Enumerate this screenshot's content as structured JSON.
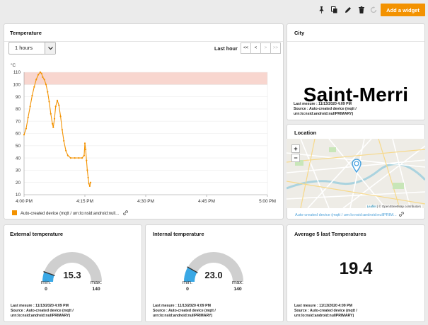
{
  "toolbar": {
    "icons": [
      "pin-icon",
      "copy-icon",
      "pencil-icon",
      "trash-icon",
      "refresh-icon"
    ],
    "add_widget_label": "Add a widget"
  },
  "colors": {
    "accent": "#f39200",
    "gauge_fill": "#3aa8e5",
    "gauge_track": "#cfcfcf",
    "threshold_band": "#f8d6cf"
  },
  "temperature_widget": {
    "title": "Temperature",
    "range_select": "1 hours",
    "range_label": "Last hour",
    "pager": [
      "<<",
      "<",
      ">",
      ">>"
    ],
    "legend": "Auto-created device (mqtt / urn:lo:nsid:android:null..."
  },
  "chart_data": {
    "type": "line",
    "title": "",
    "xlabel": "",
    "ylabel": "°C",
    "x_ticks": [
      "4:00 PM",
      "4:15 PM",
      "4:30 PM",
      "4:45 PM",
      "5:00 PM"
    ],
    "y_ticks": [
      "10",
      "20",
      "30",
      "40",
      "50",
      "60",
      "70",
      "80",
      "90",
      "100",
      "110"
    ],
    "ylim": [
      10,
      110
    ],
    "xlim_minutes": [
      0,
      60
    ],
    "threshold_band": [
      100,
      110
    ],
    "series": [
      {
        "name": "Auto-created device (mqtt / urn:lo:nsid:android:null...",
        "color": "#f39200",
        "points": [
          [
            0.0,
            59
          ],
          [
            0.5,
            64
          ],
          [
            1.0,
            73
          ],
          [
            1.5,
            82
          ],
          [
            2.0,
            91
          ],
          [
            2.5,
            98
          ],
          [
            3.0,
            104
          ],
          [
            3.5,
            108
          ],
          [
            4.0,
            110
          ],
          [
            4.3,
            109
          ],
          [
            4.6,
            106
          ],
          [
            5.0,
            104
          ],
          [
            5.4,
            100
          ],
          [
            5.8,
            94
          ],
          [
            6.2,
            86
          ],
          [
            6.6,
            76
          ],
          [
            7.0,
            68
          ],
          [
            7.2,
            65
          ],
          [
            7.5,
            72
          ],
          [
            7.8,
            82
          ],
          [
            8.2,
            87
          ],
          [
            8.6,
            83
          ],
          [
            9.0,
            74
          ],
          [
            9.4,
            63
          ],
          [
            9.8,
            54
          ],
          [
            10.3,
            46
          ],
          [
            10.8,
            42
          ],
          [
            11.5,
            40
          ],
          [
            12.5,
            40
          ],
          [
            13.5,
            40
          ],
          [
            14.3,
            40
          ],
          [
            14.8,
            42
          ],
          [
            15.0,
            52
          ],
          [
            15.2,
            47
          ],
          [
            15.4,
            38
          ],
          [
            15.6,
            30
          ],
          [
            15.8,
            24
          ],
          [
            16.0,
            19
          ],
          [
            16.2,
            17
          ],
          [
            16.4,
            20
          ]
        ]
      }
    ]
  },
  "city_widget": {
    "title": "City",
    "value": "Saint-Merri",
    "last_measure": "Last mesure : 11/13/2020 4:09 PM",
    "source": "Source : Auto-created device (mqtt /",
    "source2": "urn:lo:nsid:android:nullPRIMARY)"
  },
  "location_widget": {
    "title": "Location",
    "zoom_in": "+",
    "zoom_out": "−",
    "attribution_leaflet": "Leaflet",
    "attribution_rest": " | © OpenStreetMap contributors",
    "legend": "Auto-created device (mqtt / urn:lo:nsid:android:nullPRIM..."
  },
  "external_widget": {
    "title": "External temperature",
    "value": "15.3",
    "fraction": 0.109,
    "min_label": "min.",
    "max_label": "max.",
    "min": "0",
    "max": "140",
    "last_measure": "Last mesure : 11/13/2020 4:09 PM",
    "source": "Source : Auto-created device (mqtt /",
    "source2": "urn:lo:nsid:android:nullPRIMARY)"
  },
  "internal_widget": {
    "title": "Internal temperature",
    "value": "23.0",
    "fraction": 0.164,
    "min_label": "min.",
    "max_label": "max.",
    "min": "0",
    "max": "140",
    "last_measure": "Last mesure : 11/13/2020 4:09 PM",
    "source": "Source : Auto-created device (mqtt /",
    "source2": "urn:lo:nsid:android:nullPRIMARY)"
  },
  "average_widget": {
    "title": "Average 5 last Temperatures",
    "value": "19.4",
    "last_measure": "Last mesure : 11/13/2020 4:09 PM",
    "source": "Source : Auto-created device (mqtt /",
    "source2": "urn:lo:nsid:android:nullPRIMARY)"
  }
}
